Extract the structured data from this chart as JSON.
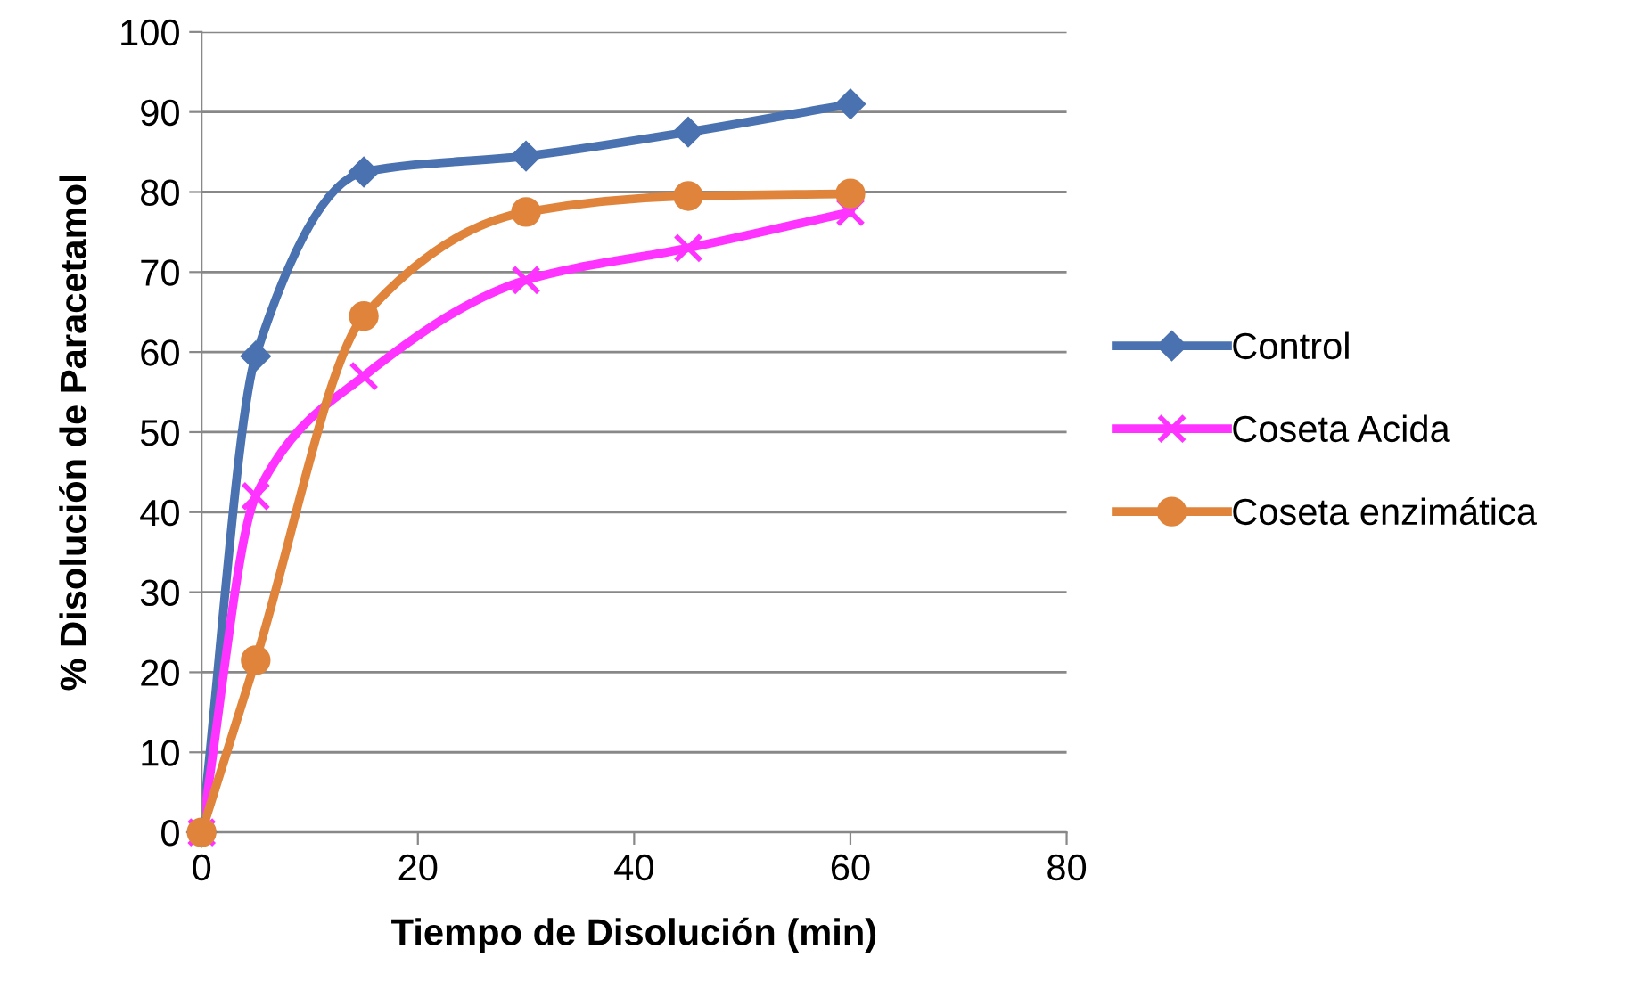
{
  "chart_data": {
    "type": "line",
    "xlabel": "Tiempo de Disolución (min)",
    "ylabel": "% Disolución de Paracetamol",
    "x": [
      0,
      5,
      15,
      30,
      45,
      60
    ],
    "series": [
      {
        "name": "Control",
        "color": "#4a72b0",
        "marker": "diamond",
        "values": [
          0,
          59.5,
          82.5,
          84.5,
          87.5,
          91
        ]
      },
      {
        "name": "Coseta Acida",
        "color": "#ff33ff",
        "marker": "cross",
        "values": [
          0,
          42,
          57,
          69,
          73,
          77.5
        ]
      },
      {
        "name": "Coseta enzimática",
        "color": "#e0843c",
        "marker": "circle",
        "values": [
          0,
          21.5,
          64.5,
          77.5,
          79.5,
          79.8
        ]
      }
    ],
    "xlim": [
      0,
      80
    ],
    "xticks": [
      0,
      20,
      40,
      60,
      80
    ],
    "ylim": [
      0,
      100
    ],
    "yticks": [
      0,
      10,
      20,
      30,
      40,
      50,
      60,
      70,
      80,
      90,
      100
    ],
    "grid": "y",
    "legend": "right",
    "line_style": "solid"
  }
}
